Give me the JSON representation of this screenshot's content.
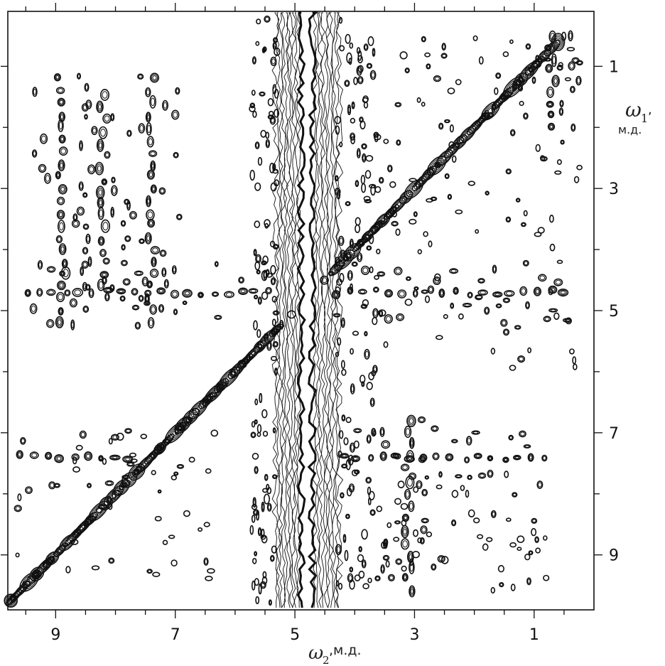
{
  "chart_data": {
    "type": "contour",
    "x_axis": {
      "name": "ω2",
      "unit": "м.д.",
      "label": "ω2, м.д.",
      "range": [
        9.8,
        0.0
      ],
      "reversed": true,
      "tick_labels": [
        "9",
        "7",
        "5",
        "3",
        "1"
      ],
      "tick_values": [
        9,
        7,
        5,
        3,
        1
      ],
      "minor_ticks": [
        9.5,
        8.5,
        8,
        7.5,
        6.5,
        6,
        5.5,
        4.5,
        4,
        3.5,
        2.5,
        2,
        1.5,
        0.5
      ]
    },
    "y_axis": {
      "name": "ω1",
      "unit": "м.д.",
      "label": "ω1, м.д.",
      "position": "right",
      "range": [
        0.1,
        9.9
      ],
      "reversed": true,
      "tick_labels": [
        "1",
        "3",
        "5",
        "7",
        "9"
      ],
      "tick_values": [
        1,
        3,
        5,
        7,
        9
      ],
      "minor_ticks": [
        2,
        4,
        6,
        8
      ]
    },
    "diagonal": {
      "from": [
        0.7,
        0.7
      ],
      "to": [
        9.7,
        9.7
      ]
    },
    "water_band": {
      "center": 4.8,
      "half_width": 0.45,
      "gap_half_width": 0.08
    },
    "cross_peak_rows": [
      {
        "omega1": 4.7,
        "omega2_from": 9.5,
        "omega2_to": 0.5
      },
      {
        "omega1": 7.4,
        "omega2_from": 4.2,
        "omega2_to": 0.8
      },
      {
        "omega1": 7.4,
        "omega2_from": 9.6,
        "omega2_to": 7.8
      }
    ],
    "cross_peak_columns": [
      {
        "omega2": 8.9,
        "omega1_from": 1.2,
        "omega1_to": 5.2
      },
      {
        "omega2": 8.2,
        "omega1_from": 1.5,
        "omega1_to": 4.8
      },
      {
        "omega2": 7.4,
        "omega1_from": 1.2,
        "omega1_to": 5.2
      },
      {
        "omega2": 3.1,
        "omega1_from": 6.8,
        "omega1_to": 9.6
      },
      {
        "omega2": 0.7,
        "omega1_from": 0.5,
        "omega1_to": 2.0
      }
    ]
  }
}
